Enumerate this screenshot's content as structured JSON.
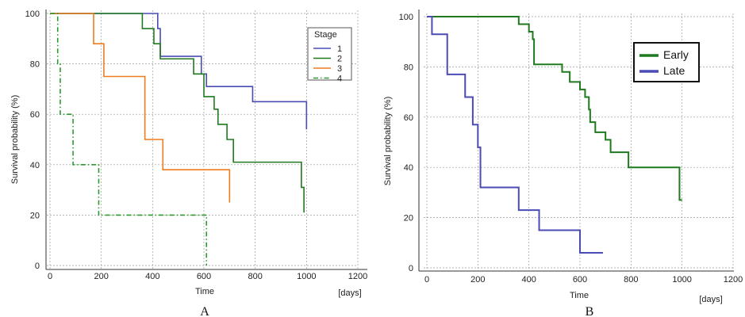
{
  "chart_data": [
    {
      "type": "line",
      "panel_label": "A",
      "xlabel": "Time",
      "x_unit": "[days]",
      "ylabel": "Survival probability (%)",
      "xlim": [
        0,
        1200
      ],
      "ylim": [
        0,
        100
      ],
      "xticks": [
        0,
        200,
        400,
        600,
        800,
        1000,
        1200
      ],
      "yticks": [
        0,
        20,
        40,
        60,
        80,
        100
      ],
      "grid": true,
      "legend_title": "Stage",
      "legend_position": "top-right",
      "series": [
        {
          "name": "1",
          "color": "#4b4bb5",
          "dash": "solid",
          "x": [
            0,
            410,
            420,
            430,
            530,
            590,
            610,
            790,
            1000
          ],
          "y": [
            100,
            100,
            94,
            83,
            83,
            76,
            71,
            65,
            54
          ]
        },
        {
          "name": "2",
          "color": "#1f7a1f",
          "dash": "solid",
          "x": [
            0,
            340,
            360,
            405,
            430,
            560,
            600,
            640,
            655,
            690,
            715,
            980,
            990
          ],
          "y": [
            100,
            100,
            94,
            88,
            82,
            76,
            67,
            62,
            56,
            50,
            41,
            31,
            21
          ]
        },
        {
          "name": "3",
          "color": "#ee7c1f",
          "dash": "solid",
          "x": [
            0,
            150,
            170,
            210,
            370,
            440,
            700
          ],
          "y": [
            100,
            100,
            88,
            75,
            50,
            38,
            25
          ]
        },
        {
          "name": "4",
          "color": "#2e9a2e",
          "dash": "dashdot",
          "x": [
            0,
            20,
            30,
            40,
            90,
            190,
            610
          ],
          "y": [
            100,
            100,
            80,
            60,
            40,
            20,
            0
          ]
        }
      ]
    },
    {
      "type": "line",
      "panel_label": "B",
      "xlabel": "Time",
      "x_unit": "[days]",
      "ylabel": "Survival probability (%)",
      "xlim": [
        0,
        1200
      ],
      "ylim": [
        0,
        100
      ],
      "xticks": [
        0,
        200,
        400,
        600,
        800,
        1000,
        1200
      ],
      "yticks": [
        0,
        20,
        40,
        60,
        80,
        100
      ],
      "grid": true,
      "legend_position": "top-right",
      "series": [
        {
          "name": "Early",
          "color": "#1f7a1f",
          "dash": "solid",
          "x": [
            0,
            340,
            360,
            400,
            415,
            420,
            510,
            530,
            560,
            600,
            620,
            635,
            640,
            660,
            700,
            720,
            790,
            980,
            990,
            1000
          ],
          "y": [
            100,
            100,
            97,
            94,
            91,
            81,
            81,
            78,
            74,
            71,
            68,
            63,
            58,
            54,
            51,
            46,
            40,
            40,
            27,
            27
          ]
        },
        {
          "name": "Late",
          "color": "#4b4bb5",
          "dash": "solid",
          "x": [
            0,
            10,
            20,
            80,
            150,
            180,
            200,
            210,
            360,
            440,
            600,
            690
          ],
          "y": [
            100,
            100,
            93,
            77,
            68,
            57,
            48,
            32,
            23,
            15,
            6,
            6
          ]
        }
      ]
    }
  ]
}
